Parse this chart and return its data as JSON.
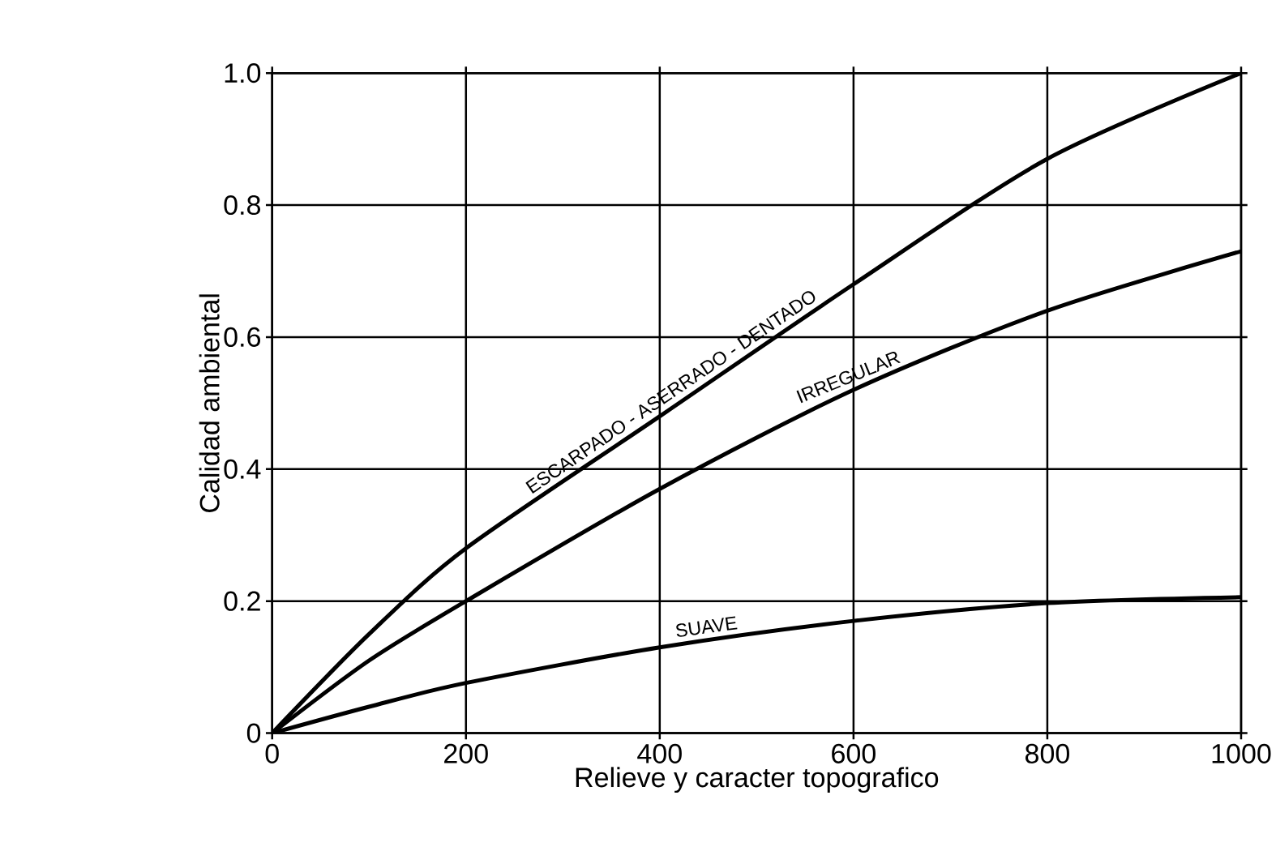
{
  "chart_data": {
    "type": "line",
    "xlabel": "Relieve y caracter topografico",
    "ylabel": "Calidad ambiental",
    "x": [
      0,
      100,
      200,
      400,
      600,
      800,
      1000
    ],
    "series": [
      {
        "name": "ESCARPADO - ASERRADO - DENTADO",
        "color": "#000000",
        "values": [
          0,
          0.15,
          0.28,
          0.48,
          0.68,
          0.87,
          1.0
        ]
      },
      {
        "name": "IRREGULAR",
        "color": "#000000",
        "values": [
          0,
          0.11,
          0.2,
          0.37,
          0.52,
          0.64,
          0.73
        ]
      },
      {
        "name": "SUAVE",
        "color": "#000000",
        "values": [
          0,
          0.04,
          0.076,
          0.13,
          0.17,
          0.197,
          0.206
        ]
      }
    ],
    "xlim": [
      0,
      1000
    ],
    "ylim": [
      0,
      1.0
    ],
    "xticks": [
      0,
      200,
      400,
      600,
      800,
      1000
    ],
    "yticks": [
      0,
      0.2,
      0.4,
      0.6,
      0.8,
      {
        "value": 1.0,
        "label": "1.0"
      }
    ],
    "grid": true,
    "legend": false,
    "marker": "none",
    "line_style": "solid"
  }
}
